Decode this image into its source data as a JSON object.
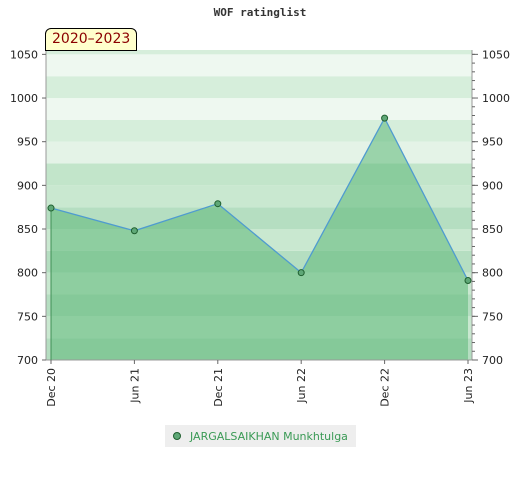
{
  "chart_data": {
    "type": "area",
    "title": "WOF ratinglist",
    "period_label": "2020–2023",
    "x": [
      "Dec 20",
      "Jun 21",
      "Dec 21",
      "Jun 22",
      "Dec 22",
      "Jun 23"
    ],
    "series": [
      {
        "name": "JARGALSAIKHAN Munkhtulga",
        "values": [
          874,
          848,
          879,
          800,
          977,
          791
        ]
      }
    ],
    "y_ticks": [
      700,
      750,
      800,
      850,
      900,
      950,
      1000,
      1050
    ],
    "ylim": [
      700,
      1055
    ],
    "grid": true,
    "legend_position": "bottom-center",
    "colors": {
      "line": "#4f9bd0",
      "marker": "#5fa877",
      "marker_edge": "#1f5f2f",
      "area": "#5cb878",
      "legend_text": "#3a9a55"
    }
  }
}
